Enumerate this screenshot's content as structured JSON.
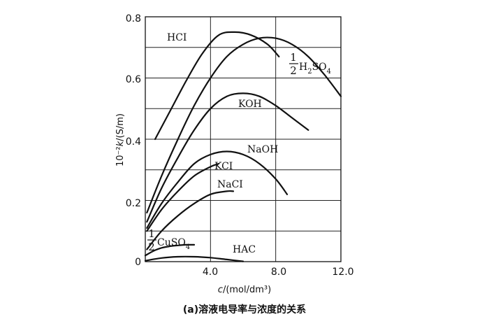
{
  "chart_data": {
    "type": "line",
    "title": "",
    "xlabel": "c/(mol/dm³)",
    "xlabel_italic": "c",
    "xlabel_rest": "/(mol/dm³)",
    "ylabel": "10⁻²k/(S/m)",
    "ylabel_prefix": "10⁻²",
    "ylabel_italic": "k",
    "ylabel_rest": "/(S/m)",
    "caption": "(a)溶液电导率与浓度的关系",
    "xlim": [
      0,
      12
    ],
    "ylim": [
      0,
      0.8
    ],
    "grid": true,
    "x_ticks": [
      "4.0",
      "8.0",
      "12.0"
    ],
    "y_ticks": [
      "0",
      "0.2",
      "0.4",
      "0.6",
      "0.8"
    ],
    "series": [
      {
        "name": "HCl",
        "label": "HCI",
        "x": [
          0.6,
          1.5,
          2.5,
          3.5,
          4.5,
          5.5,
          6.5,
          7.5,
          8.2
        ],
        "y": [
          0.4,
          0.49,
          0.59,
          0.68,
          0.74,
          0.75,
          0.74,
          0.71,
          0.67
        ]
      },
      {
        "name": "1/2 H2SO4",
        "label_num": "1",
        "label_den": "2",
        "label_main": "H",
        "label_sub1": "2",
        "label_mid": "SO",
        "label_sub2": "4",
        "x": [
          0.1,
          1.0,
          2.0,
          3.0,
          4.0,
          5.0,
          6.0,
          7.0,
          8.0,
          9.0,
          10.0,
          11.0,
          12.0
        ],
        "y": [
          0.16,
          0.28,
          0.4,
          0.51,
          0.6,
          0.67,
          0.71,
          0.73,
          0.73,
          0.71,
          0.67,
          0.61,
          0.54
        ]
      },
      {
        "name": "KOH",
        "label": "KOH",
        "x": [
          0.1,
          1.0,
          2.0,
          3.0,
          4.0,
          5.0,
          6.0,
          7.0,
          8.0,
          9.0,
          10.0
        ],
        "y": [
          0.13,
          0.24,
          0.34,
          0.43,
          0.5,
          0.54,
          0.55,
          0.54,
          0.51,
          0.47,
          0.43
        ]
      },
      {
        "name": "NaOH",
        "label": "NaOH",
        "x": [
          0.1,
          1.0,
          2.0,
          3.0,
          4.0,
          5.0,
          6.0,
          7.0,
          8.0,
          8.7
        ],
        "y": [
          0.11,
          0.19,
          0.26,
          0.32,
          0.35,
          0.36,
          0.35,
          0.32,
          0.27,
          0.22
        ]
      },
      {
        "name": "KCl",
        "label": "KCI",
        "x": [
          0.1,
          1.0,
          2.0,
          3.0,
          4.0,
          4.5
        ],
        "y": [
          0.1,
          0.17,
          0.23,
          0.28,
          0.31,
          0.32
        ]
      },
      {
        "name": "NaCl",
        "label": "NaCI",
        "x": [
          0.1,
          1.0,
          2.0,
          3.0,
          4.0,
          5.0,
          5.4
        ],
        "y": [
          0.04,
          0.1,
          0.15,
          0.19,
          0.22,
          0.23,
          0.23
        ]
      },
      {
        "name": "1/2 CuSO4",
        "label_num": "1",
        "label_den": "2",
        "label_main": "CuSO",
        "label_sub": "4",
        "x": [
          0.0,
          0.5,
          1.0,
          1.5,
          2.0,
          2.5,
          3.0
        ],
        "y": [
          0.02,
          0.035,
          0.045,
          0.05,
          0.053,
          0.055,
          0.055
        ]
      },
      {
        "name": "HAc",
        "label": "HAC",
        "x": [
          0.0,
          1.0,
          2.0,
          3.0,
          4.0,
          5.0,
          6.0
        ],
        "y": [
          0.003,
          0.012,
          0.016,
          0.016,
          0.013,
          0.007,
          0.001
        ]
      }
    ]
  }
}
